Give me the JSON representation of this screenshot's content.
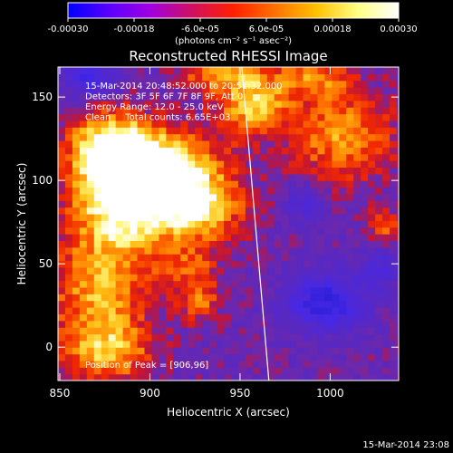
{
  "chart_data": {
    "type": "heatmap",
    "title": "Reconstructed RHESSI Image",
    "xlabel": "Heliocentric X (arcsec)",
    "ylabel": "Heliocentric Y (arcsec)",
    "xlim": [
      849,
      1038
    ],
    "ylim": [
      -20,
      168
    ],
    "xticks": [
      850,
      900,
      950,
      1000
    ],
    "yticks": [
      0,
      50,
      100,
      150
    ],
    "colorbar": {
      "unit_label": "(photons cm⁻² s⁻¹ asec⁻²)",
      "range": [
        -0.0003,
        0.0003
      ],
      "tick_values": [
        -0.0003,
        -0.00018,
        -6e-05,
        6e-05,
        0.00018,
        0.0003
      ],
      "tick_labels": [
        "-0.00030",
        "-0.00018",
        "-6.0e-05",
        "6.0e-05",
        "0.00018",
        "0.00030"
      ],
      "colormap": [
        "#0000ff",
        "#5a00ff",
        "#a000e0",
        "#d01060",
        "#ff2000",
        "#ff7000",
        "#ffc000",
        "#ffff80",
        "#ffffff"
      ]
    },
    "annotations": [
      "15-Mar-2014 20:48:52.000 to 20:51:32.000",
      "Detectors: 3F 5F 6F 7F 8F 9F, Att 0",
      "Energy Range: 12.0 - 25.0 keV",
      "Clean     Total counts: 6.65E+03"
    ],
    "peak_label": "Position of Peak = [906,96]",
    "peak": {
      "x": 906,
      "y": 96
    },
    "limb_line": [
      [
        951,
        168
      ],
      [
        966,
        -20
      ]
    ],
    "field_cell_size_arcsec": 4,
    "hot_sources": [
      {
        "x": 905,
        "y": 100,
        "sx": 22,
        "sy": 18,
        "a": 1.0
      },
      {
        "x": 880,
        "y": 90,
        "sx": 18,
        "sy": 25,
        "a": 0.75
      },
      {
        "x": 925,
        "y": 80,
        "sx": 18,
        "sy": 14,
        "a": 0.55
      },
      {
        "x": 955,
        "y": 145,
        "sx": 14,
        "sy": 14,
        "a": 0.7
      },
      {
        "x": 875,
        "y": 120,
        "sx": 16,
        "sy": 14,
        "a": 0.6
      },
      {
        "x": 870,
        "y": 30,
        "sx": 20,
        "sy": 26,
        "a": 0.55
      },
      {
        "x": 875,
        "y": -5,
        "sx": 16,
        "sy": 12,
        "a": 0.5
      },
      {
        "x": 1005,
        "y": 125,
        "sx": 20,
        "sy": 20,
        "a": 0.55
      },
      {
        "x": 935,
        "y": 165,
        "sx": 14,
        "sy": 8,
        "a": 0.55
      },
      {
        "x": 990,
        "y": 160,
        "sx": 14,
        "sy": 8,
        "a": 0.45
      },
      {
        "x": 920,
        "y": 45,
        "sx": 12,
        "sy": 10,
        "a": 0.35
      },
      {
        "x": 1030,
        "y": 70,
        "sx": 8,
        "sy": 8,
        "a": 0.35
      },
      {
        "x": 925,
        "y": 25,
        "sx": 8,
        "sy": 8,
        "a": 0.4
      }
    ],
    "cold_sources": [
      {
        "x": 995,
        "y": 25,
        "sx": 15,
        "sy": 12,
        "a": 0.5
      },
      {
        "x": 865,
        "y": 160,
        "sx": 10,
        "sy": 8,
        "a": 0.4
      },
      {
        "x": 1025,
        "y": 45,
        "sx": 8,
        "sy": 8,
        "a": 0.3
      },
      {
        "x": 985,
        "y": 85,
        "sx": 8,
        "sy": 8,
        "a": 0.25
      }
    ]
  },
  "footer_timestamp": "15-Mar-2014 23:08"
}
